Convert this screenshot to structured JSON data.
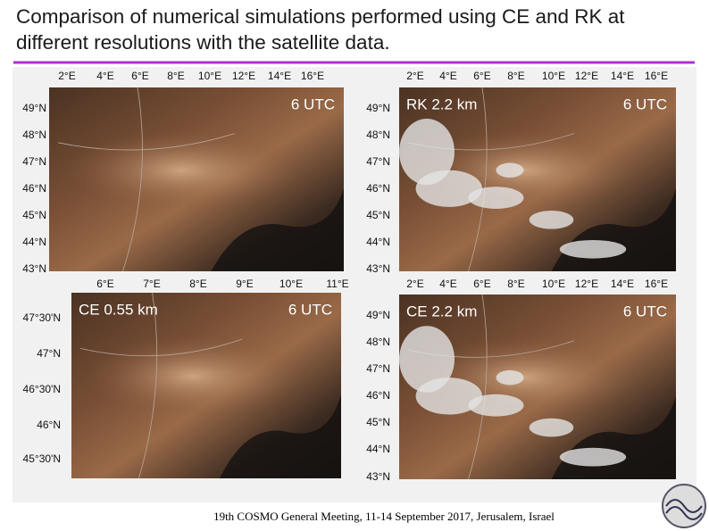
{
  "header": {
    "title": "Comparison of numerical simulations performed using CE and RK at different resolutions with the satellite data."
  },
  "panels": [
    {
      "time": "6 UTC",
      "lon_labels": [
        "2°E",
        "4°E",
        "6°E",
        "8°E",
        "10°E",
        "12°E",
        "14°E",
        "16°E"
      ],
      "lat_labels": [
        "49°N",
        "48°N",
        "47°N",
        "46°N",
        "45°N",
        "44°N",
        "43°N"
      ]
    },
    {
      "label": "RK 2.2 km",
      "time": "6 UTC",
      "lon_labels": [
        "2°E",
        "4°E",
        "6°E",
        "8°E",
        "10°E",
        "12°E",
        "14°E",
        "16°E"
      ],
      "lat_labels": [
        "49°N",
        "48°N",
        "47°N",
        "46°N",
        "45°N",
        "44°N",
        "43°N"
      ]
    },
    {
      "label": "CE 0.55 km",
      "time": "6 UTC",
      "lon_labels": [
        "6°E",
        "7°E",
        "8°E",
        "9°E",
        "10°E",
        "11°E"
      ],
      "lat_labels": [
        "47°30'N",
        "47°N",
        "46°30'N",
        "46°N",
        "45°30'N"
      ]
    },
    {
      "label": "CE 2.2 km",
      "time": "6 UTC",
      "lon_labels": [
        "2°E",
        "4°E",
        "6°E",
        "8°E",
        "10°E",
        "12°E",
        "14°E",
        "16°E"
      ],
      "lat_labels": [
        "49°N",
        "48°N",
        "47°N",
        "46°N",
        "45°N",
        "44°N",
        "43°N"
      ]
    }
  ],
  "footer": "19th COSMO General Meeting, 11-14 September 2017, Jerusalem, Israel"
}
